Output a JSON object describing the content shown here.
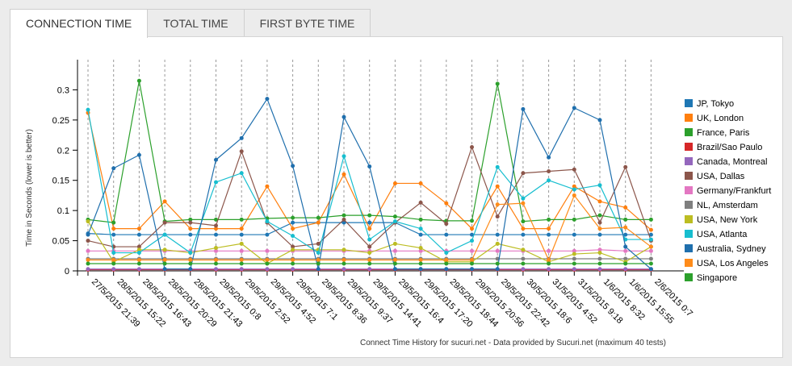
{
  "tabs": [
    {
      "label": "CONNECTION TIME",
      "active": true
    },
    {
      "label": "TOTAL TIME",
      "active": false
    },
    {
      "label": "FIRST BYTE TIME",
      "active": false
    }
  ],
  "chart_data": {
    "type": "line",
    "ylabel": "Time in Seconds (lower is better)",
    "caption": "Connect Time History for sucuri.net - Data provided by Sucuri.net (maximum 40 tests)",
    "ylim": [
      0,
      0.35
    ],
    "yticks": [
      0,
      0.05,
      0.1,
      0.15,
      0.2,
      0.25,
      0.3
    ],
    "ytick_labels": [
      "0",
      "0.05",
      "0.1",
      "0.15",
      "0.2",
      "0.25",
      "0.3"
    ],
    "grid": "vertical dashed",
    "legend": "right",
    "x": [
      "27/5/2015 21:39",
      "28/5/2015 15:22",
      "28/5/2015 16:43",
      "28/5/2015 20:29",
      "28/5/2015 21:43",
      "29/5/2015 0:8",
      "29/5/2015 2:52",
      "29/5/2015 4:52",
      "29/5/2015 7:1",
      "29/5/2015 8:36",
      "29/5/2015 9:37",
      "29/5/2015 14:41",
      "29/5/2015 16:4",
      "29/5/2015 17:20",
      "29/5/2015 18:44",
      "29/5/2015 20:56",
      "29/5/2015 22:42",
      "30/5/2015 18:6",
      "31/5/2015 4:52",
      "31/5/2015 9:18",
      "1/6/2015 8:32",
      "1/6/2015 15:55",
      "2/6/2015 0:7"
    ],
    "series": [
      {
        "name": "JP, Tokyo",
        "color": "#1f77b4",
        "values": [
          0.062,
          0.06,
          0.06,
          0.06,
          0.06,
          0.06,
          0.06,
          0.06,
          0.08,
          0.08,
          0.08,
          0.08,
          0.08,
          0.06,
          0.06,
          0.06,
          0.06,
          0.06,
          0.06,
          0.06,
          0.06,
          0.06,
          0.06
        ]
      },
      {
        "name": "UK, London",
        "color": "#ff7f0e",
        "values": [
          0.262,
          0.07,
          0.07,
          0.115,
          0.07,
          0.07,
          0.07,
          0.14,
          0.07,
          0.08,
          0.16,
          0.07,
          0.145,
          0.145,
          0.112,
          0.07,
          0.14,
          0.07,
          0.07,
          0.14,
          0.115,
          0.105,
          0.068
        ]
      },
      {
        "name": "France, Paris",
        "color": "#2ca02c",
        "values": [
          0.085,
          0.08,
          0.315,
          0.082,
          0.085,
          0.085,
          0.085,
          0.087,
          0.088,
          0.088,
          0.092,
          0.092,
          0.09,
          0.085,
          0.083,
          0.083,
          0.31,
          0.082,
          0.085,
          0.085,
          0.092,
          0.085,
          0.085
        ]
      },
      {
        "name": "Brazil/Sao Paulo",
        "color": "#d62728",
        "values": [
          0.002,
          0.002,
          0.002,
          0.002,
          0.002,
          0.002,
          0.002,
          0.002,
          0.002,
          0.002,
          0.002,
          0.002,
          0.002,
          0.002,
          0.002,
          0.002,
          0.002,
          0.002,
          0.002,
          0.002,
          0.002,
          0.002,
          0.002
        ]
      },
      {
        "name": "Canada, Montreal",
        "color": "#9467bd",
        "values": [
          0.003,
          0.003,
          0.003,
          0.003,
          0.003,
          0.003,
          0.003,
          0.003,
          0.003,
          0.003,
          0.003,
          0.003,
          0.003,
          0.003,
          0.003,
          0.003,
          0.003,
          0.003,
          0.003,
          0.003,
          0.003,
          0.003,
          0.003
        ]
      },
      {
        "name": "USA, Dallas",
        "color": "#8c564b",
        "values": [
          0.05,
          0.04,
          0.04,
          0.08,
          0.08,
          0.075,
          0.198,
          0.08,
          0.04,
          0.045,
          0.085,
          0.04,
          0.08,
          0.113,
          0.078,
          0.205,
          0.09,
          0.162,
          0.165,
          0.168,
          0.08,
          0.172,
          0.05
        ]
      },
      {
        "name": "Germany/Frankfurt",
        "color": "#e377c2",
        "values": [
          0.033,
          0.033,
          0.033,
          0.033,
          0.033,
          0.033,
          0.033,
          0.033,
          0.033,
          0.033,
          0.033,
          0.033,
          0.033,
          0.033,
          0.033,
          0.033,
          0.033,
          0.033,
          0.033,
          0.033,
          0.035,
          0.033,
          0.033
        ]
      },
      {
        "name": "NL, Amsterdam",
        "color": "#7f7f7f",
        "values": [
          0.02,
          0.02,
          0.02,
          0.02,
          0.02,
          0.02,
          0.02,
          0.02,
          0.02,
          0.02,
          0.02,
          0.02,
          0.02,
          0.02,
          0.02,
          0.02,
          0.02,
          0.02,
          0.02,
          0.02,
          0.02,
          0.02,
          0.02
        ]
      },
      {
        "name": "USA, New York",
        "color": "#bcbd22",
        "values": [
          0.082,
          0.015,
          0.035,
          0.035,
          0.03,
          0.038,
          0.045,
          0.012,
          0.035,
          0.035,
          0.035,
          0.03,
          0.045,
          0.038,
          0.015,
          0.015,
          0.045,
          0.035,
          0.015,
          0.028,
          0.03,
          0.015,
          0.04
        ]
      },
      {
        "name": "USA, Atlanta",
        "color": "#17becf",
        "values": [
          0.267,
          0.03,
          0.03,
          0.06,
          0.03,
          0.147,
          0.162,
          0.082,
          0.058,
          0.03,
          0.19,
          0.052,
          0.082,
          0.07,
          0.03,
          0.05,
          0.172,
          0.12,
          0.15,
          0.135,
          0.142,
          0.052,
          0.052
        ]
      },
      {
        "name": "Australia, Sydney",
        "color": "#1f6fad",
        "values": [
          0.06,
          0.17,
          0.192,
          0.003,
          0.003,
          0.184,
          0.22,
          0.285,
          0.174,
          0.003,
          0.255,
          0.173,
          0.003,
          0.003,
          0.003,
          0.003,
          0.003,
          0.268,
          0.188,
          0.27,
          0.25,
          0.04,
          0.003
        ]
      },
      {
        "name": "USA, Los Angeles",
        "color": "#ff8c1a",
        "values": [
          0.018,
          0.018,
          0.018,
          0.018,
          0.018,
          0.018,
          0.018,
          0.018,
          0.018,
          0.018,
          0.018,
          0.018,
          0.018,
          0.018,
          0.018,
          0.018,
          0.11,
          0.112,
          0.018,
          0.125,
          0.07,
          0.072,
          0.04
        ]
      },
      {
        "name": "Singapore",
        "color": "#2ca02c",
        "values": [
          0.012,
          0.012,
          0.012,
          0.012,
          0.012,
          0.012,
          0.012,
          0.012,
          0.012,
          0.012,
          0.012,
          0.012,
          0.012,
          0.012,
          0.012,
          0.012,
          0.012,
          0.012,
          0.012,
          0.012,
          0.012,
          0.012,
          0.012
        ]
      }
    ]
  }
}
